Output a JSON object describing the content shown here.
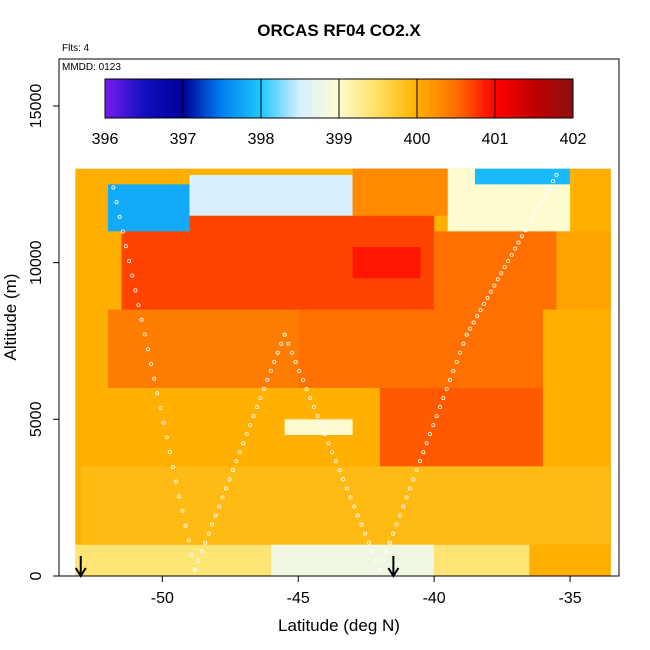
{
  "chart_data": {
    "type": "heatmap",
    "title": "ORCAS RF04 CO2.X",
    "flights_note": "Flts: 4",
    "date_note": "MMDD: 0123",
    "xlabel": "Latitude (deg N)",
    "ylabel": "Altitude (m)",
    "xlim": [
      -53.8,
      -33.2
    ],
    "ylim": [
      0,
      16500
    ],
    "xticks": [
      -50,
      -45,
      -40,
      -35
    ],
    "xtick_labels": [
      "-50",
      "-45",
      "-40",
      "-35"
    ],
    "yticks": [
      0,
      5000,
      10000,
      15000
    ],
    "ytick_labels": [
      "0",
      "5000",
      "10000",
      "15000"
    ],
    "colorbar": {
      "min": 396,
      "max": 402,
      "ticks": [
        396,
        397,
        398,
        399,
        400,
        401,
        402
      ],
      "tick_labels": [
        "396",
        "397",
        "398",
        "399",
        "400",
        "401",
        "402"
      ],
      "colors": [
        "#7a1bf0",
        "#1010c0",
        "#00009a",
        "#0080f0",
        "#20c8ff",
        "#d8f0ff",
        "#fffbd0",
        "#ffe060",
        "#ffb000",
        "#ff7000",
        "#ff0000",
        "#c00000",
        "#8b1010"
      ]
    },
    "region_extent": {
      "lat_south": -53.2,
      "lat_north": -33.5,
      "alt_min": 0,
      "alt_max": 13000
    },
    "series": [
      {
        "values": [
          {
            "lat_min": -53.2,
            "lat_max": -46.0,
            "alt_min": 0,
            "alt_max": 1000,
            "co2": 399.4
          },
          {
            "lat_min": -46.0,
            "lat_max": -40.0,
            "alt_min": 0,
            "alt_max": 1200,
            "co2": 398.8
          },
          {
            "lat_min": -40.0,
            "lat_max": -36.5,
            "alt_min": 0,
            "alt_max": 1000,
            "co2": 399.4
          },
          {
            "lat_min": -53.0,
            "lat_max": -33.5,
            "alt_min": 1000,
            "alt_max": 3500,
            "co2": 399.9
          },
          {
            "lat_min": -52.0,
            "lat_max": -42.0,
            "alt_min": 3500,
            "alt_max": 6000,
            "co2": 400.0
          },
          {
            "lat_min": -45.5,
            "lat_max": -43.0,
            "alt_min": 4500,
            "alt_max": 5000,
            "co2": 399.0
          },
          {
            "lat_min": -42.0,
            "lat_max": -36.0,
            "alt_min": 3500,
            "alt_max": 7000,
            "co2": 400.6
          },
          {
            "lat_min": -52.0,
            "lat_max": -45.0,
            "alt_min": 6000,
            "alt_max": 8500,
            "co2": 400.4
          },
          {
            "lat_min": -45.0,
            "lat_max": -36.0,
            "alt_min": 6000,
            "alt_max": 8500,
            "co2": 400.5
          },
          {
            "lat_min": -51.5,
            "lat_max": -40.0,
            "alt_min": 8500,
            "alt_max": 11500,
            "co2": 400.7
          },
          {
            "lat_min": -43.0,
            "lat_max": -40.5,
            "alt_min": 9500,
            "alt_max": 10500,
            "co2": 400.9
          },
          {
            "lat_min": -40.0,
            "lat_max": -35.5,
            "alt_min": 8500,
            "alt_max": 11000,
            "co2": 400.5
          },
          {
            "lat_min": -35.5,
            "lat_max": -33.5,
            "alt_min": 8500,
            "alt_max": 11000,
            "co2": 400.1
          },
          {
            "lat_min": -52.0,
            "lat_max": -49.0,
            "alt_min": 11000,
            "alt_max": 12500,
            "co2": 397.8
          },
          {
            "lat_min": -49.0,
            "lat_max": -43.0,
            "alt_min": 11500,
            "alt_max": 12800,
            "co2": 398.5
          },
          {
            "lat_min": -43.0,
            "lat_max": -39.5,
            "alt_min": 11500,
            "alt_max": 13000,
            "co2": 400.3
          },
          {
            "lat_min": -39.5,
            "lat_max": -35.0,
            "alt_min": 11000,
            "alt_max": 13000,
            "co2": 399.0
          },
          {
            "lat_min": -38.5,
            "lat_max": -35.0,
            "alt_min": 12500,
            "alt_max": 13000,
            "co2": 397.9
          }
        ]
      }
    ],
    "markers": [
      {
        "type": "arrow-down",
        "lat": -53.0
      },
      {
        "type": "arrow-down",
        "lat": -41.5
      }
    ]
  }
}
